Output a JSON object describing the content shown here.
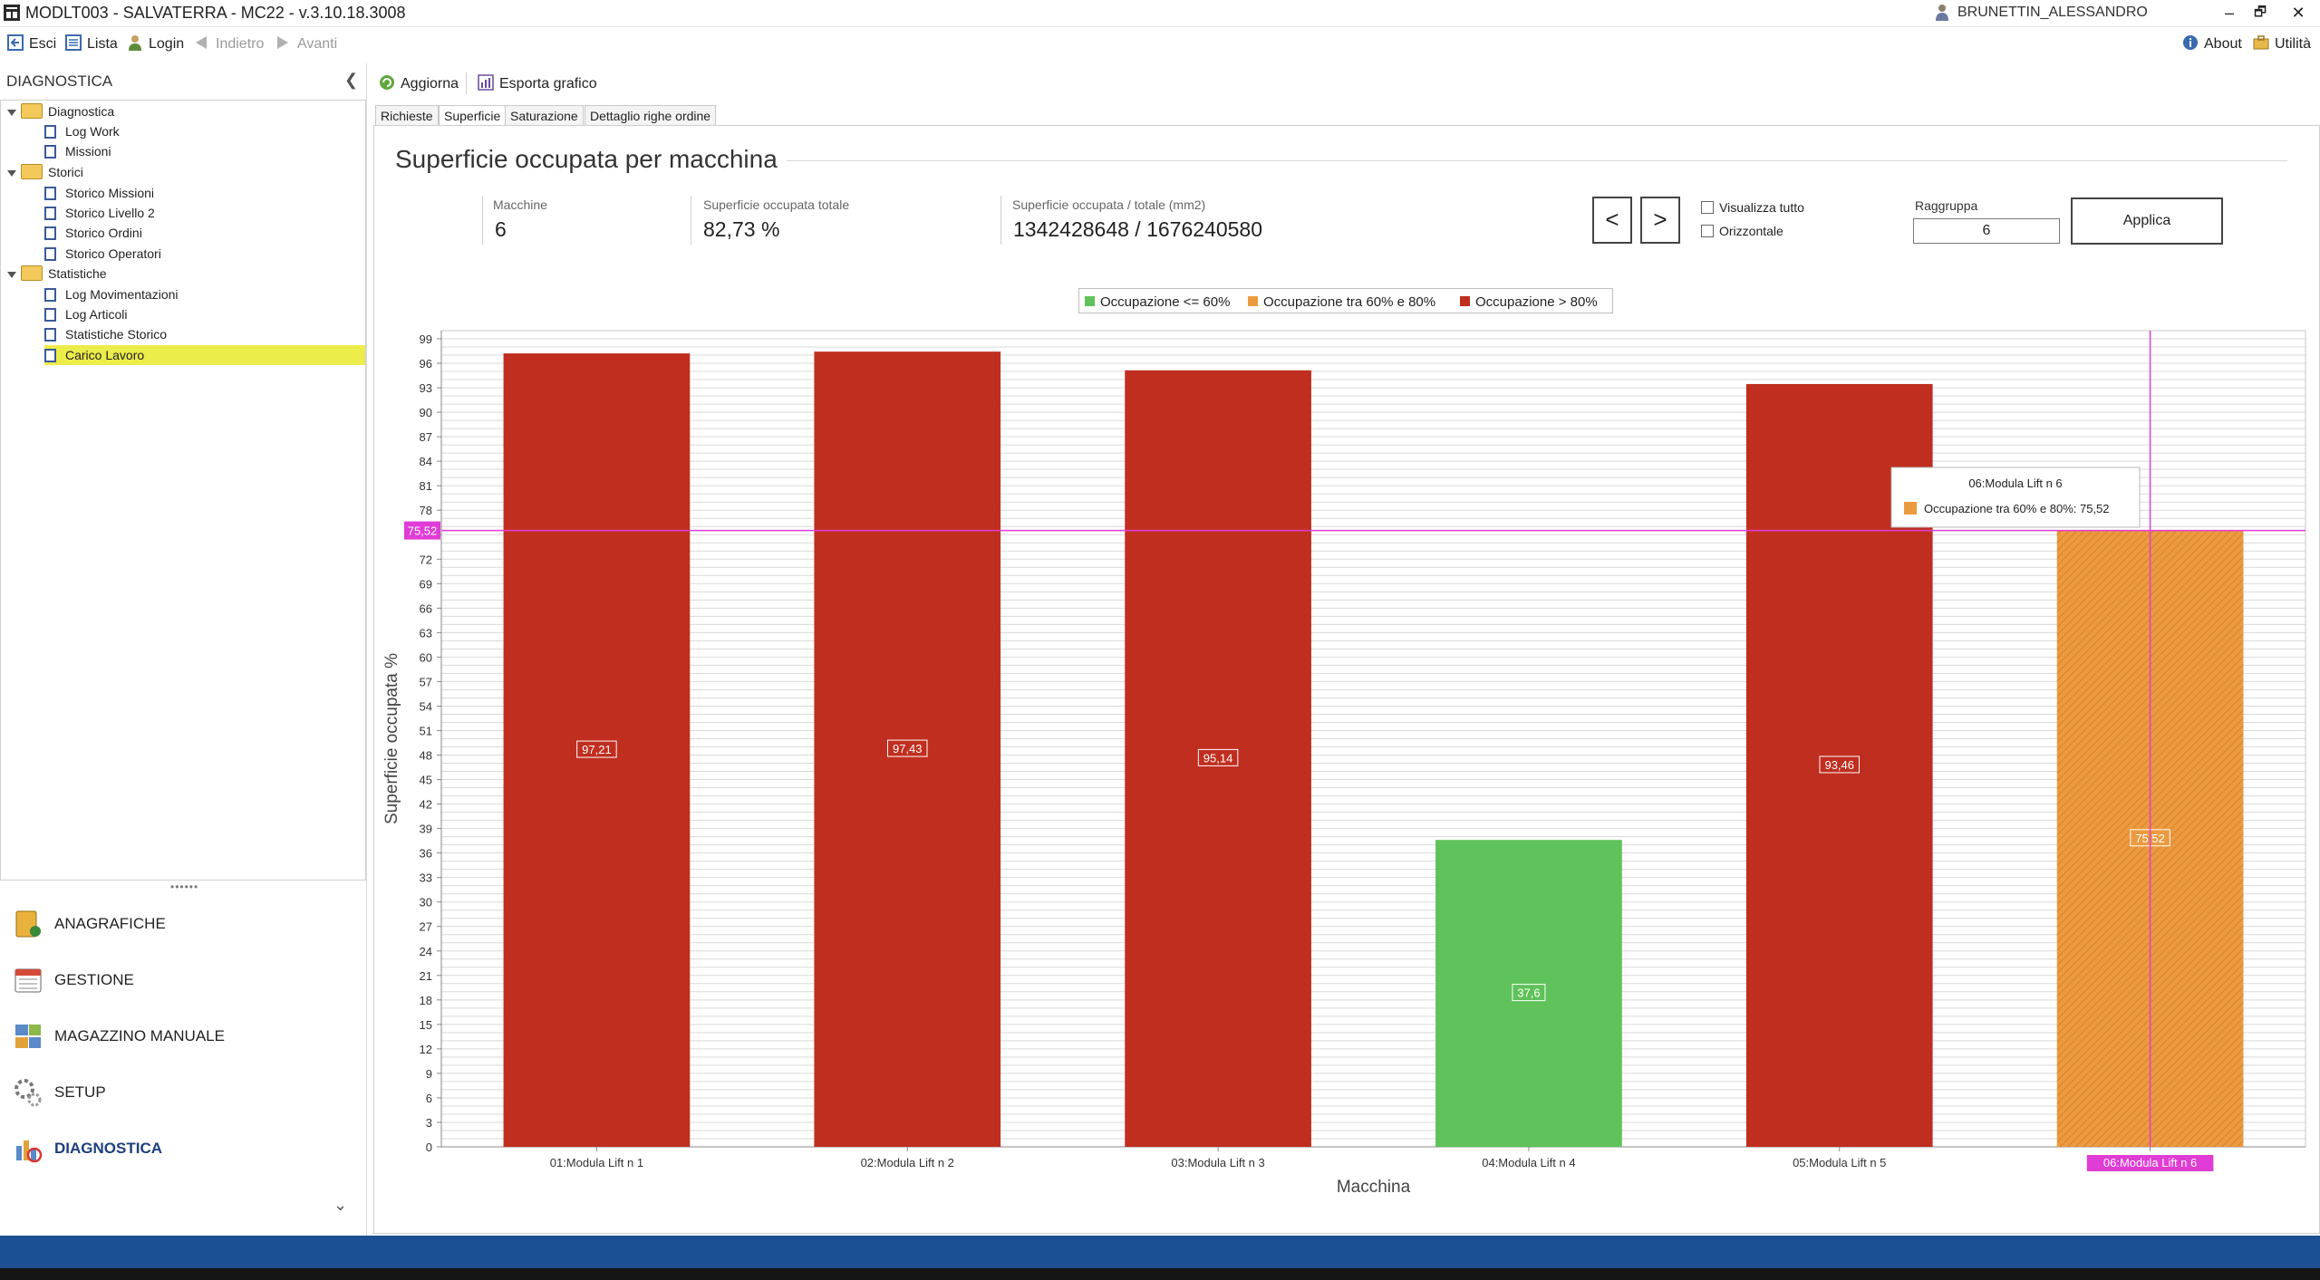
{
  "window": {
    "title": "MODLT003 - SALVATERRA - MC22 - v.3.10.18.3008",
    "user": "BRUNETTIN_ALESSANDRO",
    "controls": [
      "–",
      "🗗",
      "✕"
    ]
  },
  "toolbar": {
    "esci": "Esci",
    "lista": "Lista",
    "login": "Login",
    "indietro": "Indietro",
    "avanti": "Avanti",
    "about": "About",
    "utilita": "Utilità"
  },
  "left_panel": {
    "title": "DIAGNOSTICA",
    "tree": [
      {
        "label": "Diagnostica",
        "type": "folder",
        "children": [
          "Log Work",
          "Missioni"
        ]
      },
      {
        "label": "Storici",
        "type": "folder",
        "children": [
          "Storico Missioni",
          "Storico Livello 2",
          "Storico Ordini",
          "Storico Operatori"
        ]
      },
      {
        "label": "Statistiche",
        "type": "folder",
        "children": [
          "Log Movimentazioni",
          "Log Articoli",
          "Statistiche Storico",
          "Carico Lavoro"
        ]
      }
    ],
    "selected": "Carico Lavoro",
    "nav": [
      {
        "label": "ANAGRAFICHE",
        "active": false
      },
      {
        "label": "GESTIONE",
        "active": false
      },
      {
        "label": "MAGAZZINO MANUALE",
        "active": false
      },
      {
        "label": "SETUP",
        "active": false
      },
      {
        "label": "DIAGNOSTICA",
        "active": true
      }
    ]
  },
  "main": {
    "aggiorna": "Aggiorna",
    "esporta": "Esporta grafico",
    "tabs": [
      "Richieste",
      "Superficie",
      "Saturazione",
      "Dettaglio righe ordine"
    ],
    "active_tab": "Superficie",
    "section_title": "Superficie occupata per macchina",
    "stats": {
      "macchine_label": "Macchine",
      "macchine_value": "6",
      "totale_label": "Superficie occupata totale",
      "totale_value": "82,73 %",
      "ratio_label": "Superficie occupata / totale (mm2)",
      "ratio_value": "1342428648 / 1676240580"
    },
    "prev": "<",
    "next": ">",
    "visualizza_tutto": "Visualizza tutto",
    "orizzontale": "Orizzontale",
    "raggruppa_label": "Raggruppa",
    "raggruppa_value": "6",
    "applica": "Applica"
  },
  "chart_data": {
    "type": "bar",
    "categories": [
      "01:Modula Lift n 1",
      "02:Modula Lift n 2",
      "03:Modula Lift n 3",
      "04:Modula Lift n 4",
      "05:Modula Lift n 5",
      "06:Modula Lift n 6"
    ],
    "values": [
      97.21,
      97.43,
      95.14,
      37.6,
      93.46,
      75.52
    ],
    "value_labels": [
      "97,21",
      "97,43",
      "95,14",
      "37,6",
      "93,46",
      "75,52"
    ],
    "series_of_bar": [
      2,
      2,
      2,
      0,
      2,
      1
    ],
    "legend": [
      {
        "name": "Occupazione <= 60%",
        "color": "#5fc25a"
      },
      {
        "name": "Occupazione tra 60% e 80%",
        "color": "#ec9a3f"
      },
      {
        "name": "Occupazione > 80%",
        "color": "#c02e1f"
      }
    ],
    "xlabel": "Macchina",
    "ylabel": "Superficie occupata %",
    "ylim": [
      0,
      100
    ],
    "yticks": [
      0,
      3,
      6,
      9,
      12,
      15,
      18,
      21,
      24,
      27,
      30,
      33,
      36,
      39,
      42,
      45,
      48,
      51,
      54,
      57,
      60,
      63,
      66,
      69,
      72,
      75,
      78,
      81,
      84,
      87,
      90,
      93,
      96,
      99
    ],
    "crosshair_value": 75.52,
    "crosshair_label": "75,52",
    "highlighted_index": 5,
    "tooltip": {
      "title": "06:Modula Lift n 6",
      "text": "Occupazione tra 60% e 80%: 75,52"
    },
    "legend_placement": "top-center",
    "grid": true
  }
}
